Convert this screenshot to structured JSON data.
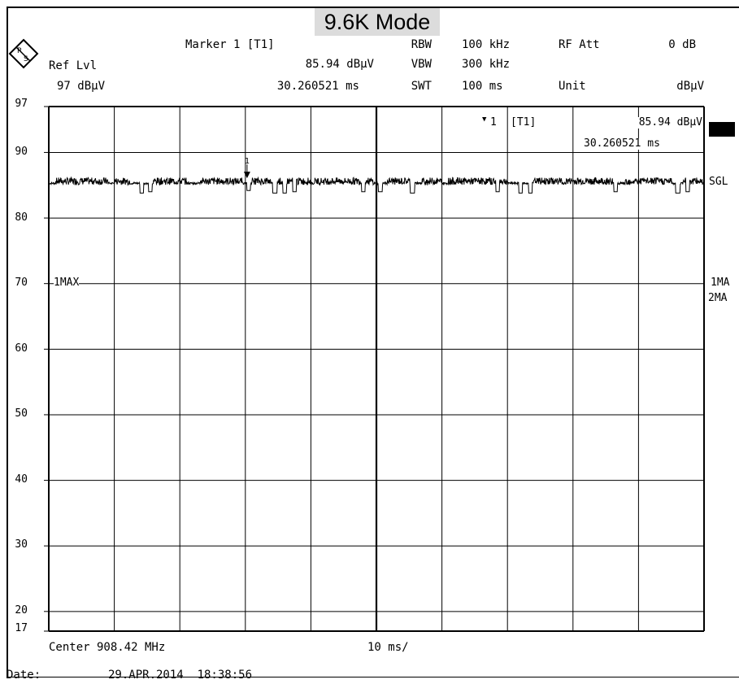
{
  "title": "9.6K Mode",
  "header": {
    "marker_label": "Marker 1 [T1]",
    "marker_level": "85.94 dBµV",
    "marker_time": "30.260521 ms",
    "ref_lvl_label": "Ref Lvl",
    "ref_lvl_value": "97 dBµV",
    "rbw_label": "RBW",
    "rbw_value": "100 kHz",
    "vbw_label": "VBW",
    "vbw_value": "300 kHz",
    "swt_label": "SWT",
    "swt_value": "100 ms",
    "rf_att_label": "RF Att",
    "rf_att_value": "0 dB",
    "unit_label": "Unit",
    "unit_value": "dBµV"
  },
  "marker_box": {
    "symbol": "▼",
    "id": "1",
    "trace": "[T1]",
    "level": "85.94 dBµV",
    "time": "30.260521 ms"
  },
  "side_labels": {
    "sgl": "SGL",
    "trace1": "1MA",
    "trace2": "2MA",
    "trace_in_plot": "1MAX"
  },
  "footer": {
    "center": "Center 908.42 MHz",
    "span": "10 ms/",
    "date_label": "Date:",
    "date_value": "29.APR.2014  18:38:56"
  },
  "chart_data": {
    "type": "line",
    "title": "9.6K Mode",
    "xlabel": "",
    "ylabel": "",
    "x_unit": "ms",
    "y_unit": "dBµV",
    "xlim": [
      0,
      100
    ],
    "ylim": [
      17,
      97
    ],
    "y_ticks": [
      97,
      90,
      80,
      70,
      60,
      50,
      40,
      30,
      20,
      17
    ],
    "grid": true,
    "series": [
      {
        "marker": {
          "label": "1",
          "x": 30.26,
          "y": 85.94
        },
        "baseline": 85.3,
        "dips": [
          {
            "x": 14.2,
            "w": 0.6,
            "y": 83.8
          },
          {
            "x": 15.5,
            "w": 0.5,
            "y": 84.0
          },
          {
            "x": 30.5,
            "w": 0.5,
            "y": 84.2
          },
          {
            "x": 34.5,
            "w": 0.7,
            "y": 83.8
          },
          {
            "x": 36.0,
            "w": 0.6,
            "y": 83.8
          },
          {
            "x": 37.5,
            "w": 0.6,
            "y": 84.0
          },
          {
            "x": 48.0,
            "w": 0.5,
            "y": 84.0
          },
          {
            "x": 50.6,
            "w": 0.6,
            "y": 84.0
          },
          {
            "x": 55.5,
            "w": 0.7,
            "y": 83.8
          },
          {
            "x": 68.5,
            "w": 0.6,
            "y": 84.0
          },
          {
            "x": 72.0,
            "w": 0.6,
            "y": 83.8
          },
          {
            "x": 73.5,
            "w": 0.6,
            "y": 83.8
          },
          {
            "x": 86.5,
            "w": 0.6,
            "y": 84.0
          },
          {
            "x": 96.0,
            "w": 0.7,
            "y": 83.8
          },
          {
            "x": 97.5,
            "w": 0.6,
            "y": 84.0
          }
        ],
        "bursts": [
          {
            "x": 1.0,
            "w": 8.0
          },
          {
            "x": 10.0,
            "w": 2.5
          },
          {
            "x": 16.0,
            "w": 5.0
          },
          {
            "x": 23.0,
            "w": 6.5
          },
          {
            "x": 31.0,
            "w": 3.0
          },
          {
            "x": 35.0,
            "w": 5.0
          },
          {
            "x": 40.5,
            "w": 9.0
          },
          {
            "x": 51.5,
            "w": 4.0
          },
          {
            "x": 57.0,
            "w": 3.0
          },
          {
            "x": 61.0,
            "w": 9.0
          },
          {
            "x": 74.0,
            "w": 4.5
          },
          {
            "x": 79.0,
            "w": 7.0
          },
          {
            "x": 88.0,
            "w": 7.0
          },
          {
            "x": 96.8,
            "w": 3.0
          }
        ]
      }
    ]
  }
}
